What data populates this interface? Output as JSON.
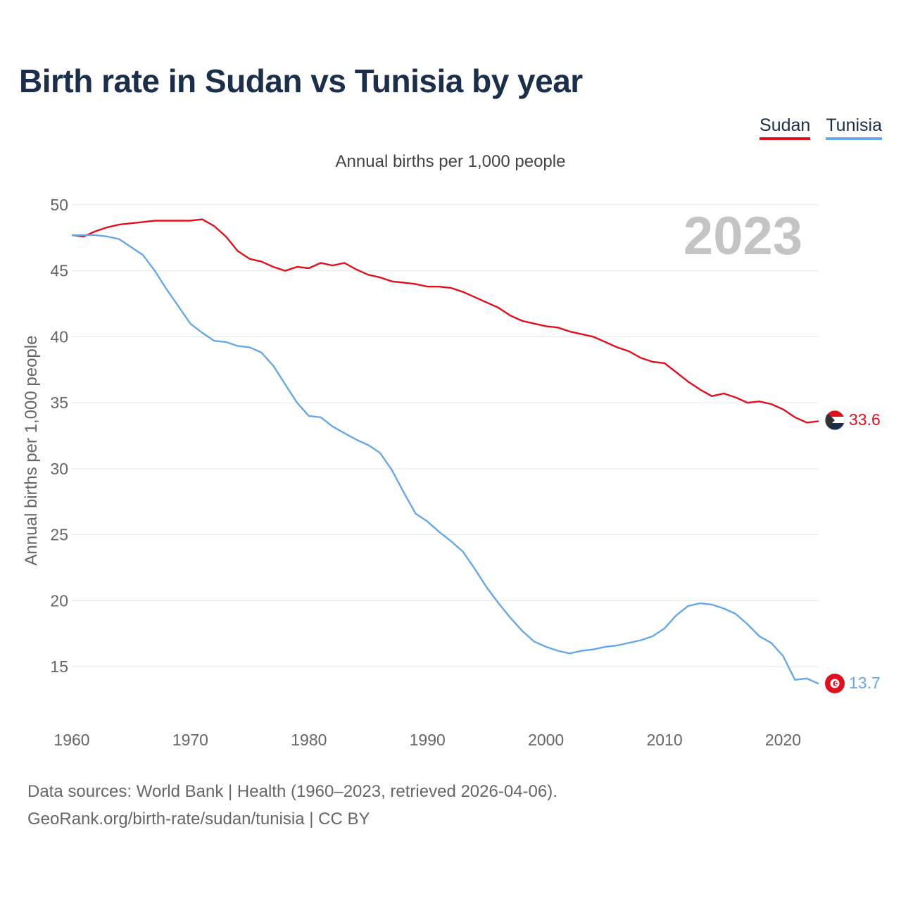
{
  "title": "Birth rate in Sudan vs Tunisia by year",
  "subtitle": "Annual births per 1,000 people",
  "footer": {
    "line1": "Data sources: World Bank | Health (1960–2023, retrieved 2026-04-06).",
    "line2": "GeoRank.org/birth-rate/sudan/tunisia | CC BY"
  },
  "colors": {
    "sudan": "#e1101e",
    "tunisia": "#67a8e6",
    "grid": "#e6e6e6",
    "tick": "#666666",
    "year_label": "#c4c4c4"
  },
  "chart_data": {
    "type": "line",
    "title": "Birth rate in Sudan vs Tunisia by year",
    "xlabel": "",
    "ylabel": "Annual births per 1,000 people",
    "xlim": [
      1960,
      2023
    ],
    "ylim": [
      11,
      50
    ],
    "yticks": [
      15,
      20,
      25,
      30,
      35,
      40,
      45,
      50
    ],
    "xticks": [
      1960,
      1970,
      1980,
      1990,
      2000,
      2010,
      2020
    ],
    "year_label": "2023",
    "legend": [
      "Sudan",
      "Tunisia"
    ],
    "series": [
      {
        "name": "Sudan",
        "end_label": "33.6",
        "x": [
          1960,
          1961,
          1962,
          1963,
          1964,
          1965,
          1966,
          1967,
          1968,
          1969,
          1970,
          1971,
          1972,
          1973,
          1974,
          1975,
          1976,
          1977,
          1978,
          1979,
          1980,
          1981,
          1982,
          1983,
          1984,
          1985,
          1986,
          1987,
          1988,
          1989,
          1990,
          1991,
          1992,
          1993,
          1994,
          1995,
          1996,
          1997,
          1998,
          1999,
          2000,
          2001,
          2002,
          2003,
          2004,
          2005,
          2006,
          2007,
          2008,
          2009,
          2010,
          2011,
          2012,
          2013,
          2014,
          2015,
          2016,
          2017,
          2018,
          2019,
          2020,
          2021,
          2022,
          2023
        ],
        "y": [
          47.7,
          47.6,
          48.0,
          48.3,
          48.5,
          48.6,
          48.7,
          48.8,
          48.8,
          48.8,
          48.8,
          48.9,
          48.4,
          47.6,
          46.5,
          45.9,
          45.7,
          45.3,
          45.0,
          45.3,
          45.2,
          45.6,
          45.4,
          45.6,
          45.1,
          44.7,
          44.5,
          44.2,
          44.1,
          44.0,
          43.8,
          43.8,
          43.7,
          43.4,
          43.0,
          42.6,
          42.2,
          41.6,
          41.2,
          41.0,
          40.8,
          40.7,
          40.4,
          40.2,
          40.0,
          39.6,
          39.2,
          38.9,
          38.4,
          38.1,
          38.0,
          37.3,
          36.6,
          36.0,
          35.5,
          35.7,
          35.4,
          35.0,
          35.1,
          34.9,
          34.5,
          33.9,
          33.5,
          33.6
        ]
      },
      {
        "name": "Tunisia",
        "end_label": "13.7",
        "x": [
          1960,
          1961,
          1962,
          1963,
          1964,
          1965,
          1966,
          1967,
          1968,
          1969,
          1970,
          1971,
          1972,
          1973,
          1974,
          1975,
          1976,
          1977,
          1978,
          1979,
          1980,
          1981,
          1982,
          1983,
          1984,
          1985,
          1986,
          1987,
          1988,
          1989,
          1990,
          1991,
          1992,
          1993,
          1994,
          1995,
          1996,
          1997,
          1998,
          1999,
          2000,
          2001,
          2002,
          2003,
          2004,
          2005,
          2006,
          2007,
          2008,
          2009,
          2010,
          2011,
          2012,
          2013,
          2014,
          2015,
          2016,
          2017,
          2018,
          2019,
          2020,
          2021,
          2022,
          2023
        ],
        "y": [
          47.7,
          47.7,
          47.7,
          47.6,
          47.4,
          46.8,
          46.2,
          45.0,
          43.6,
          42.3,
          41.0,
          40.3,
          39.7,
          39.6,
          39.3,
          39.2,
          38.8,
          37.8,
          36.4,
          35.0,
          34.0,
          33.9,
          33.2,
          32.7,
          32.2,
          31.8,
          31.2,
          29.9,
          28.2,
          26.6,
          26.0,
          25.2,
          24.5,
          23.7,
          22.4,
          21.0,
          19.8,
          18.7,
          17.7,
          16.9,
          16.5,
          16.2,
          16.0,
          16.2,
          16.3,
          16.5,
          16.6,
          16.8,
          17.0,
          17.3,
          17.9,
          18.9,
          19.6,
          19.8,
          19.7,
          19.4,
          19.0,
          18.2,
          17.3,
          16.8,
          15.8,
          14.0,
          14.1,
          13.7
        ]
      }
    ]
  }
}
